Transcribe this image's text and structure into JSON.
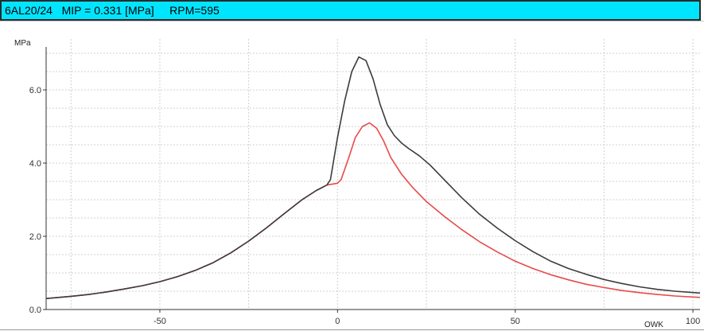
{
  "title_bar": {
    "label": "6AL20/24   MIP = 0.331 [MPa]     RPM=595"
  },
  "chart_data": {
    "type": "line",
    "xlabel": "OWK",
    "ylabel": "MPa",
    "xlim": [
      -82,
      102
    ],
    "ylim": [
      0,
      7.0
    ],
    "x_ticks": [
      "-50",
      "0",
      "50",
      "100"
    ],
    "x_tick_values": [
      -50,
      0,
      50,
      100
    ],
    "y_ticks": [
      "0.0",
      "2.0",
      "4.0",
      "6.0"
    ],
    "y_tick_values": [
      0,
      2,
      4,
      6
    ],
    "grid": true,
    "colors": {
      "series_black": "#3c3c3c",
      "series_red": "#e84a4a",
      "grid": "#d0d0d0",
      "axis": "#333333"
    },
    "series": [
      {
        "points": [
          [
            -82,
            0.3
          ],
          [
            -75,
            0.36
          ],
          [
            -70,
            0.41
          ],
          [
            -65,
            0.48
          ],
          [
            -60,
            0.56
          ],
          [
            -55,
            0.65
          ],
          [
            -50,
            0.76
          ],
          [
            -45,
            0.9
          ],
          [
            -40,
            1.07
          ],
          [
            -35,
            1.28
          ],
          [
            -30,
            1.55
          ],
          [
            -25,
            1.87
          ],
          [
            -20,
            2.23
          ],
          [
            -15,
            2.62
          ],
          [
            -10,
            3.0
          ],
          [
            -6,
            3.25
          ],
          [
            -3,
            3.4
          ],
          [
            -2,
            3.55
          ],
          [
            0,
            4.7
          ],
          [
            2,
            5.7
          ],
          [
            4,
            6.5
          ],
          [
            6,
            6.9
          ],
          [
            8,
            6.8
          ],
          [
            10,
            6.3
          ],
          [
            12,
            5.6
          ],
          [
            14,
            5.05
          ],
          [
            16,
            4.75
          ],
          [
            18,
            4.55
          ],
          [
            20,
            4.4
          ],
          [
            23,
            4.2
          ],
          [
            26,
            3.95
          ],
          [
            30,
            3.55
          ],
          [
            35,
            3.05
          ],
          [
            40,
            2.6
          ],
          [
            45,
            2.22
          ],
          [
            50,
            1.88
          ],
          [
            55,
            1.58
          ],
          [
            60,
            1.32
          ],
          [
            65,
            1.12
          ],
          [
            70,
            0.96
          ],
          [
            75,
            0.82
          ],
          [
            80,
            0.71
          ],
          [
            85,
            0.62
          ],
          [
            90,
            0.55
          ],
          [
            95,
            0.5
          ],
          [
            102,
            0.45
          ]
        ]
      },
      {
        "points": [
          [
            -82,
            0.3
          ],
          [
            -75,
            0.36
          ],
          [
            -70,
            0.41
          ],
          [
            -65,
            0.48
          ],
          [
            -60,
            0.56
          ],
          [
            -55,
            0.65
          ],
          [
            -50,
            0.76
          ],
          [
            -45,
            0.9
          ],
          [
            -40,
            1.07
          ],
          [
            -35,
            1.28
          ],
          [
            -30,
            1.55
          ],
          [
            -25,
            1.87
          ],
          [
            -20,
            2.23
          ],
          [
            -15,
            2.62
          ],
          [
            -10,
            3.0
          ],
          [
            -6,
            3.25
          ],
          [
            -3,
            3.4
          ],
          [
            0,
            3.45
          ],
          [
            1,
            3.55
          ],
          [
            3,
            4.1
          ],
          [
            5,
            4.7
          ],
          [
            7,
            5.0
          ],
          [
            9,
            5.1
          ],
          [
            11,
            4.95
          ],
          [
            13,
            4.6
          ],
          [
            15,
            4.15
          ],
          [
            18,
            3.7
          ],
          [
            21,
            3.35
          ],
          [
            25,
            2.95
          ],
          [
            30,
            2.55
          ],
          [
            35,
            2.18
          ],
          [
            40,
            1.85
          ],
          [
            45,
            1.57
          ],
          [
            50,
            1.32
          ],
          [
            55,
            1.12
          ],
          [
            60,
            0.95
          ],
          [
            65,
            0.81
          ],
          [
            70,
            0.69
          ],
          [
            75,
            0.6
          ],
          [
            80,
            0.52
          ],
          [
            85,
            0.46
          ],
          [
            90,
            0.41
          ],
          [
            95,
            0.37
          ],
          [
            102,
            0.33
          ]
        ]
      }
    ]
  }
}
